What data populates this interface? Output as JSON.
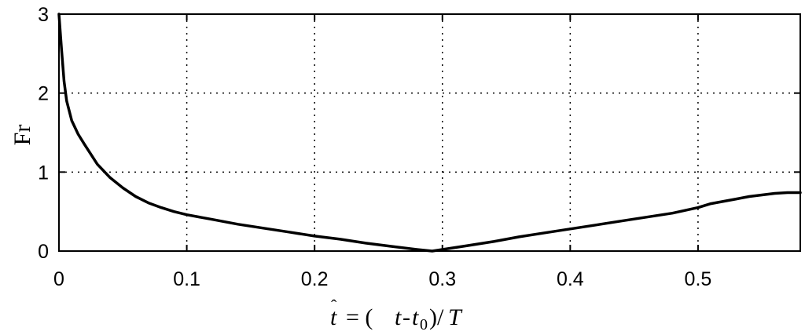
{
  "chart_data": {
    "type": "line",
    "title": "",
    "xlabel": "t̂ = (t-t0)/T",
    "ylabel": "Fr",
    "xlim": [
      0,
      0.58
    ],
    "ylim": [
      0,
      3
    ],
    "grid": true,
    "x_ticks": [
      "0",
      "0.1",
      "0.2",
      "0.3",
      "0.4",
      "0.5"
    ],
    "x_tick_values": [
      0,
      0.1,
      0.2,
      0.3,
      0.4,
      0.5
    ],
    "y_ticks": [
      "0",
      "1",
      "2",
      "3"
    ],
    "y_tick_values": [
      0,
      1,
      2,
      3
    ],
    "series": [
      {
        "color": "#000000",
        "x": [
          0.0,
          0.002,
          0.004,
          0.006,
          0.01,
          0.015,
          0.02,
          0.03,
          0.04,
          0.05,
          0.06,
          0.07,
          0.08,
          0.09,
          0.1,
          0.12,
          0.14,
          0.16,
          0.18,
          0.2,
          0.22,
          0.24,
          0.26,
          0.28,
          0.292,
          0.3,
          0.32,
          0.34,
          0.36,
          0.38,
          0.4,
          0.42,
          0.44,
          0.46,
          0.48,
          0.5,
          0.51,
          0.52,
          0.53,
          0.54,
          0.55,
          0.56,
          0.57,
          0.58
        ],
        "y": [
          3.0,
          2.55,
          2.15,
          1.9,
          1.65,
          1.48,
          1.35,
          1.1,
          0.93,
          0.8,
          0.69,
          0.61,
          0.55,
          0.5,
          0.46,
          0.4,
          0.34,
          0.29,
          0.24,
          0.19,
          0.15,
          0.1,
          0.06,
          0.02,
          0.0,
          0.02,
          0.07,
          0.12,
          0.18,
          0.23,
          0.28,
          0.33,
          0.38,
          0.43,
          0.48,
          0.55,
          0.6,
          0.63,
          0.66,
          0.69,
          0.71,
          0.73,
          0.74,
          0.74
        ]
      }
    ]
  }
}
